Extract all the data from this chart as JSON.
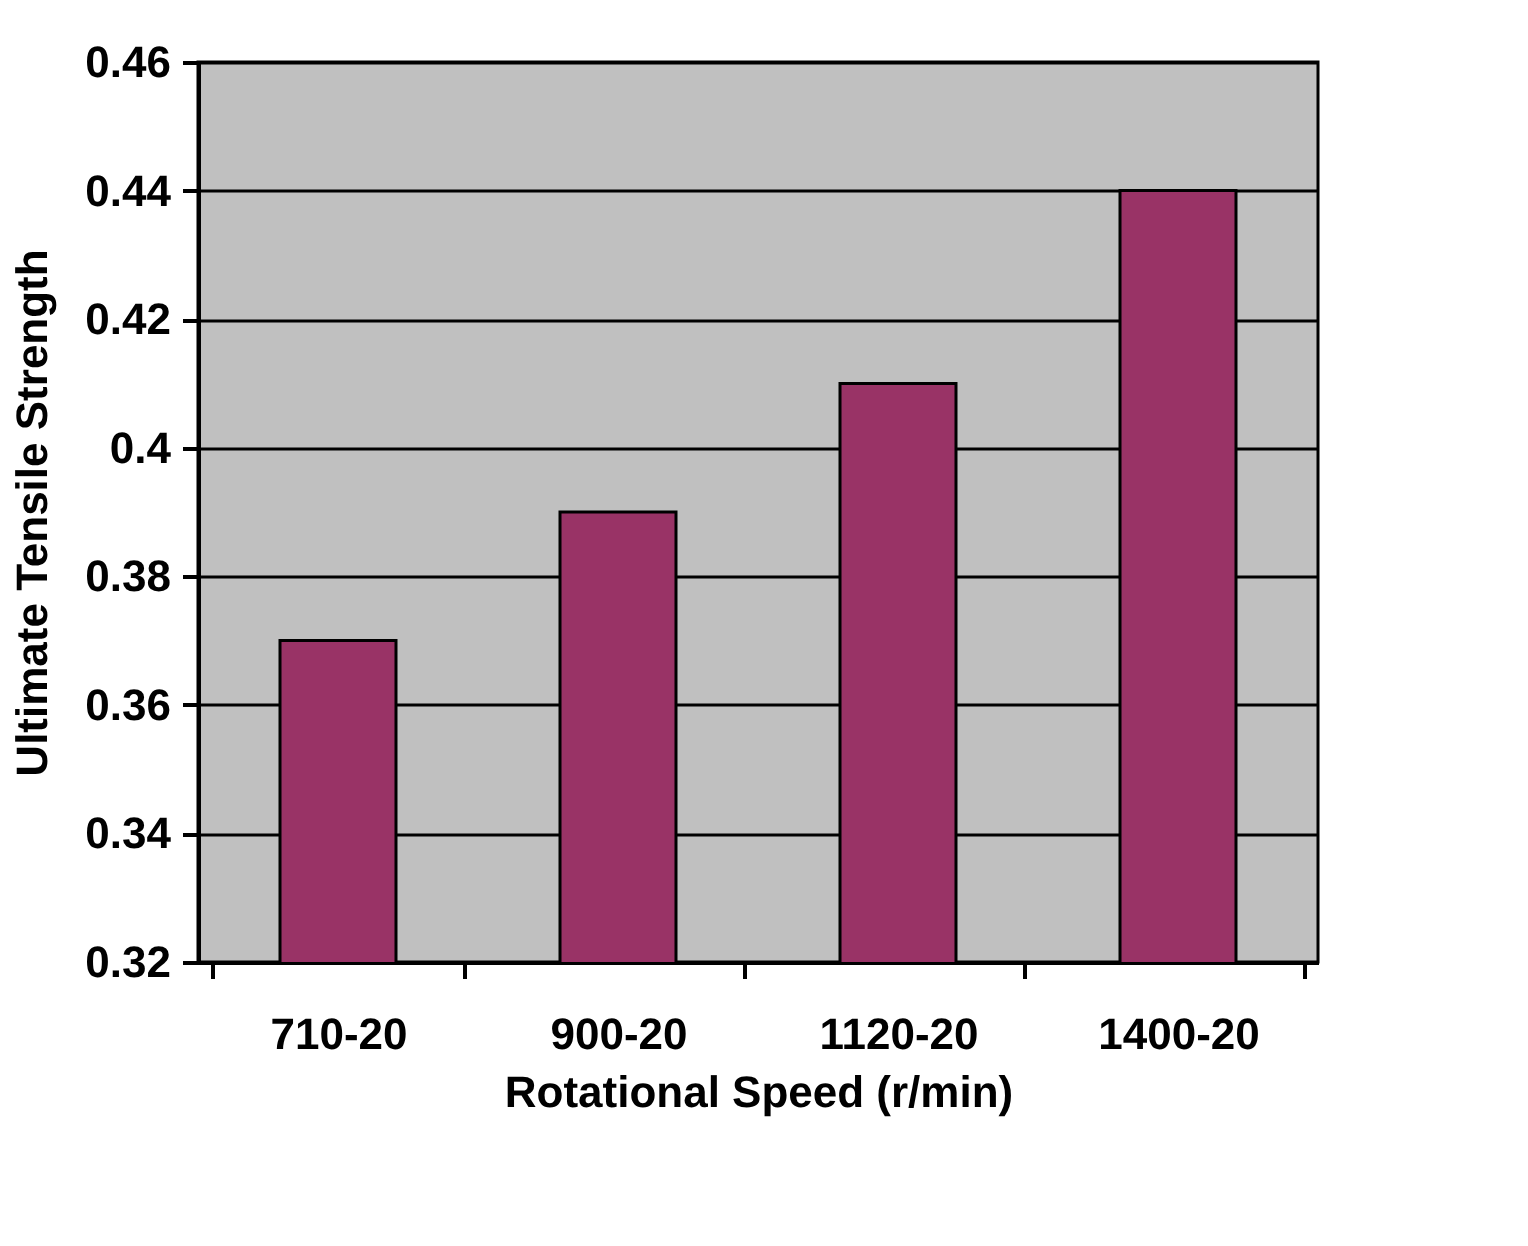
{
  "chart_data": {
    "type": "bar",
    "xlabel": "Rotational Speed (r/min)",
    "ylabel": "Ultimate  Tensile Strength",
    "categories": [
      "710-20",
      "900-20",
      "1120-20",
      "1400-20"
    ],
    "values": [
      0.37,
      0.39,
      0.41,
      0.44
    ],
    "color": "#993366",
    "ylim": [
      0.32,
      0.46
    ],
    "yticks": [
      0.32,
      0.34,
      0.36,
      0.38,
      0.4,
      0.42,
      0.44,
      0.46
    ],
    "grid": "y"
  }
}
